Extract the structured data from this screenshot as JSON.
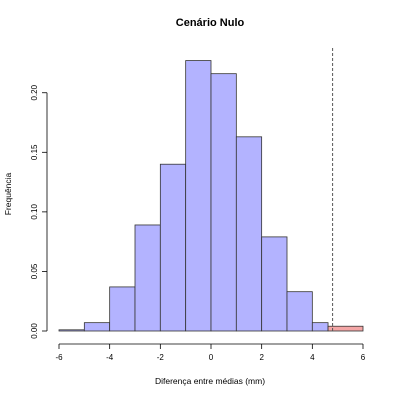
{
  "chart_data": {
    "type": "bar",
    "title": "Cenário Nulo",
    "xlabel": "Diferença entre médias (mm)",
    "ylabel": "Frequência",
    "xlim": [
      -6,
      6
    ],
    "ylim": [
      0,
      0.23
    ],
    "x_ticks": [
      "-6",
      "-4",
      "-2",
      "0",
      "2",
      "4",
      "6"
    ],
    "y_ticks": [
      "0.00",
      "0.05",
      "0.10",
      "0.15",
      "0.20"
    ],
    "bins": [
      {
        "from": -6,
        "to": -5,
        "value": 0.001,
        "color": "#b3b3ff"
      },
      {
        "from": -5,
        "to": -4,
        "value": 0.007,
        "color": "#b3b3ff"
      },
      {
        "from": -4,
        "to": -3,
        "value": 0.037,
        "color": "#b3b3ff"
      },
      {
        "from": -3,
        "to": -2,
        "value": 0.089,
        "color": "#b3b3ff"
      },
      {
        "from": -2,
        "to": -1,
        "value": 0.14,
        "color": "#b3b3ff"
      },
      {
        "from": -1,
        "to": 0,
        "value": 0.227,
        "color": "#b3b3ff"
      },
      {
        "from": 0,
        "to": 1,
        "value": 0.216,
        "color": "#b3b3ff"
      },
      {
        "from": 1,
        "to": 2,
        "value": 0.163,
        "color": "#b3b3ff"
      },
      {
        "from": 2,
        "to": 3,
        "value": 0.079,
        "color": "#b3b3ff"
      },
      {
        "from": 3,
        "to": 4,
        "value": 0.033,
        "color": "#b3b3ff"
      },
      {
        "from": 4,
        "to": 4.62,
        "value": 0.007,
        "color": "#b3b3ff"
      },
      {
        "from": 4.62,
        "to": 6,
        "value": 0.004,
        "color": "#f4a6a6"
      }
    ],
    "reference_line": {
      "x": 4.8,
      "style": "dashed",
      "color": "#555555"
    },
    "grid": false
  }
}
